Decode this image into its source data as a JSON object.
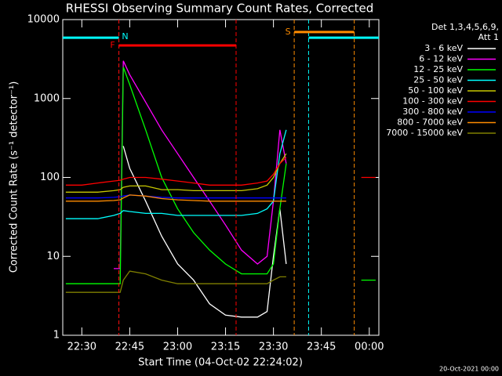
{
  "chart_data": {
    "type": "line",
    "title": "RHESSI Observing Summary Count Rates, Corrected",
    "x_label": "Start Time (04-Oct-02 22:24:02)",
    "y_label": "Corrected Count Rate (s⁻¹ detector⁻¹)",
    "legend_title": [
      "Det 1,3,4,5,6,9,",
      "Att 1"
    ],
    "footer": "20-Oct-2021 00:00",
    "yscale": "log",
    "ylim": [
      1,
      10000
    ],
    "yticks": [
      1,
      10,
      100,
      1000,
      10000
    ],
    "xlim": [
      1344.03,
      1443
    ],
    "xticks": [
      {
        "value": 1350,
        "label": "22:30"
      },
      {
        "value": 1365,
        "label": "22:45"
      },
      {
        "value": 1380,
        "label": "23:00"
      },
      {
        "value": 1395,
        "label": "23:15"
      },
      {
        "value": 1410,
        "label": "23:30"
      },
      {
        "value": 1425,
        "label": "23:45"
      },
      {
        "value": 1440,
        "label": "00:00"
      }
    ],
    "legend": "right",
    "x": [
      1345,
      1350,
      1355,
      1360,
      1362,
      1363,
      1365,
      1370,
      1375,
      1380,
      1385,
      1390,
      1395,
      1400,
      1405,
      1408,
      1410,
      1412,
      1414,
      1415,
      1437.5,
      1442
    ],
    "series": [
      {
        "name": "3 - 6 keV",
        "color": "#ffffff",
        "values": [
          null,
          null,
          null,
          null,
          null,
          250,
          130,
          50,
          18,
          8,
          5,
          2.5,
          1.8,
          1.7,
          1.7,
          2,
          10,
          40,
          8,
          null,
          null,
          null
        ]
      },
      {
        "name": "6 - 12 keV",
        "color": "#ff00ff",
        "values": [
          null,
          null,
          null,
          7,
          7,
          3000,
          2000,
          900,
          400,
          200,
          100,
          50,
          25,
          12,
          8,
          10,
          50,
          400,
          150,
          null,
          null,
          null
        ]
      },
      {
        "name": "12 - 25 keV",
        "color": "#00ff00",
        "values": [
          4.5,
          4.5,
          4.5,
          4.5,
          4.5,
          2500,
          1500,
          400,
          100,
          40,
          20,
          12,
          8,
          6,
          6,
          6,
          8,
          40,
          150,
          null,
          5,
          5
        ]
      },
      {
        "name": "25 - 50 keV",
        "color": "#00ffff",
        "values": [
          30,
          30,
          30,
          33,
          35,
          38,
          37,
          35,
          35,
          33,
          33,
          33,
          33,
          33,
          35,
          40,
          50,
          200,
          400,
          null,
          null,
          null
        ]
      },
      {
        "name": "50 - 100 keV",
        "color": "#c8c800",
        "values": [
          65,
          65,
          65,
          68,
          70,
          75,
          78,
          78,
          70,
          70,
          68,
          68,
          68,
          68,
          72,
          80,
          100,
          150,
          200,
          null,
          null,
          null
        ]
      },
      {
        "name": "100 - 300 keV",
        "color": "#ff0000",
        "values": [
          80,
          80,
          85,
          90,
          92,
          95,
          100,
          100,
          95,
          90,
          85,
          80,
          80,
          80,
          85,
          90,
          110,
          150,
          180,
          null,
          100,
          100
        ]
      },
      {
        "name": "300 - 800 keV",
        "color": "#0000ff",
        "values": [
          55,
          55,
          55,
          56,
          57,
          58,
          60,
          58,
          56,
          55,
          55,
          55,
          55,
          55,
          55,
          55,
          55,
          55,
          55,
          null,
          null,
          null
        ]
      },
      {
        "name": "800 - 7000 keV",
        "color": "#ff8c00",
        "values": [
          50,
          50,
          50,
          51,
          52,
          55,
          60,
          58,
          54,
          52,
          51,
          50,
          50,
          50,
          50,
          50,
          50,
          50,
          50,
          null,
          null,
          null
        ]
      },
      {
        "name": "7000 - 15000 keV",
        "color": "#808000",
        "values": [
          3.5,
          3.5,
          3.5,
          3.5,
          3.5,
          5,
          6.5,
          6,
          5,
          4.5,
          4.5,
          4.5,
          4.5,
          4.5,
          4.5,
          4.5,
          5,
          5.5,
          5.5,
          null,
          null,
          null
        ]
      }
    ],
    "annotations": [
      {
        "label": "N",
        "color": "#00ffff",
        "x": [
          1344.03,
          1361.6
        ],
        "y": 5900
      },
      {
        "color": "#00ffff",
        "x": [
          1421,
          1443
        ],
        "y": 5900
      },
      {
        "label": "F",
        "color": "#ff0000",
        "x": [
          1361.6,
          1398.3
        ],
        "y": 4700
      },
      {
        "label": "S",
        "color": "#ff8c00",
        "x": [
          1416.5,
          1435.3
        ],
        "y": 6960
      }
    ]
  }
}
